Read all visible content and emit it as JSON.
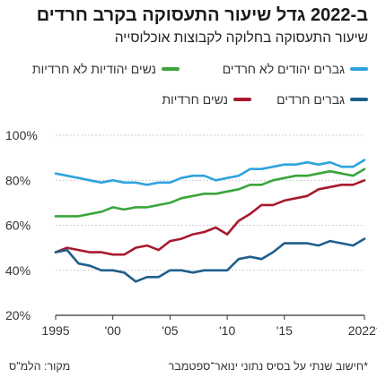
{
  "header": {
    "title": "ב-2022 גדל שיעור התעסוקה בקרב חרדים",
    "subtitle": "שיעור התעסוקה בחלוקה לקבוצות אוכלוסייה"
  },
  "footer": {
    "footnote": "*חישוב שנתי על בסיס נתוני ינואר־ספטמבר",
    "source": "מקור: הלמ\"ס"
  },
  "colors": {
    "jewish_men_non_haredi": "#2ea3de",
    "jewish_women_non_haredi": "#3aa53a",
    "haredi_women": "#a8192e",
    "haredi_men": "#1f5f8b"
  },
  "chart_data": {
    "type": "line",
    "x": [
      1995,
      1996,
      1997,
      1998,
      1999,
      2000,
      2001,
      2002,
      2003,
      2004,
      2005,
      2006,
      2007,
      2008,
      2009,
      2010,
      2011,
      2012,
      2013,
      2014,
      2015,
      2016,
      2017,
      2018,
      2019,
      2020,
      2021,
      2022
    ],
    "xticks": [
      {
        "value": 1995,
        "label": "1995"
      },
      {
        "value": 2000,
        "label": "'00"
      },
      {
        "value": 2005,
        "label": "'05"
      },
      {
        "value": 2010,
        "label": "'10"
      },
      {
        "value": 2015,
        "label": "'15"
      },
      {
        "value": 2022,
        "label": "2022*"
      }
    ],
    "yticks": [
      {
        "value": 20,
        "label": "20%"
      },
      {
        "value": 40,
        "label": "40%"
      },
      {
        "value": 60,
        "label": "60%"
      },
      {
        "value": 80,
        "label": "80%"
      },
      {
        "value": 100,
        "label": "100%"
      }
    ],
    "xlim": [
      1995,
      2022
    ],
    "ylim": [
      20,
      100
    ],
    "grid": true,
    "legend_position": "top",
    "series": [
      {
        "key": "jewish_men_non_haredi",
        "name": "גברים יהודים לא חרדים",
        "values": [
          83,
          82,
          81,
          80,
          79,
          80,
          79,
          79,
          78,
          79,
          79,
          81,
          82,
          82,
          80,
          81,
          82,
          85,
          85,
          86,
          87,
          87,
          88,
          87,
          88,
          86,
          86,
          89
        ]
      },
      {
        "key": "jewish_women_non_haredi",
        "name": "נשים יהודיות לא חרדיות",
        "values": [
          64,
          64,
          64,
          65,
          66,
          68,
          67,
          68,
          68,
          69,
          70,
          72,
          73,
          74,
          74,
          75,
          76,
          78,
          78,
          80,
          81,
          82,
          82,
          83,
          84,
          83,
          82,
          85
        ]
      },
      {
        "key": "haredi_women",
        "name": "נשים חרדיות",
        "values": [
          48,
          50,
          49,
          48,
          48,
          47,
          47,
          50,
          51,
          49,
          53,
          54,
          56,
          57,
          59,
          56,
          62,
          65,
          69,
          69,
          71,
          72,
          73,
          76,
          77,
          78,
          78,
          80
        ]
      },
      {
        "key": "haredi_men",
        "name": "גברים חרדים",
        "values": [
          48,
          49,
          43,
          42,
          40,
          40,
          39,
          35,
          37,
          37,
          40,
          40,
          39,
          40,
          40,
          40,
          45,
          46,
          45,
          48,
          52,
          52,
          52,
          51,
          53,
          52,
          51,
          54
        ]
      }
    ]
  }
}
